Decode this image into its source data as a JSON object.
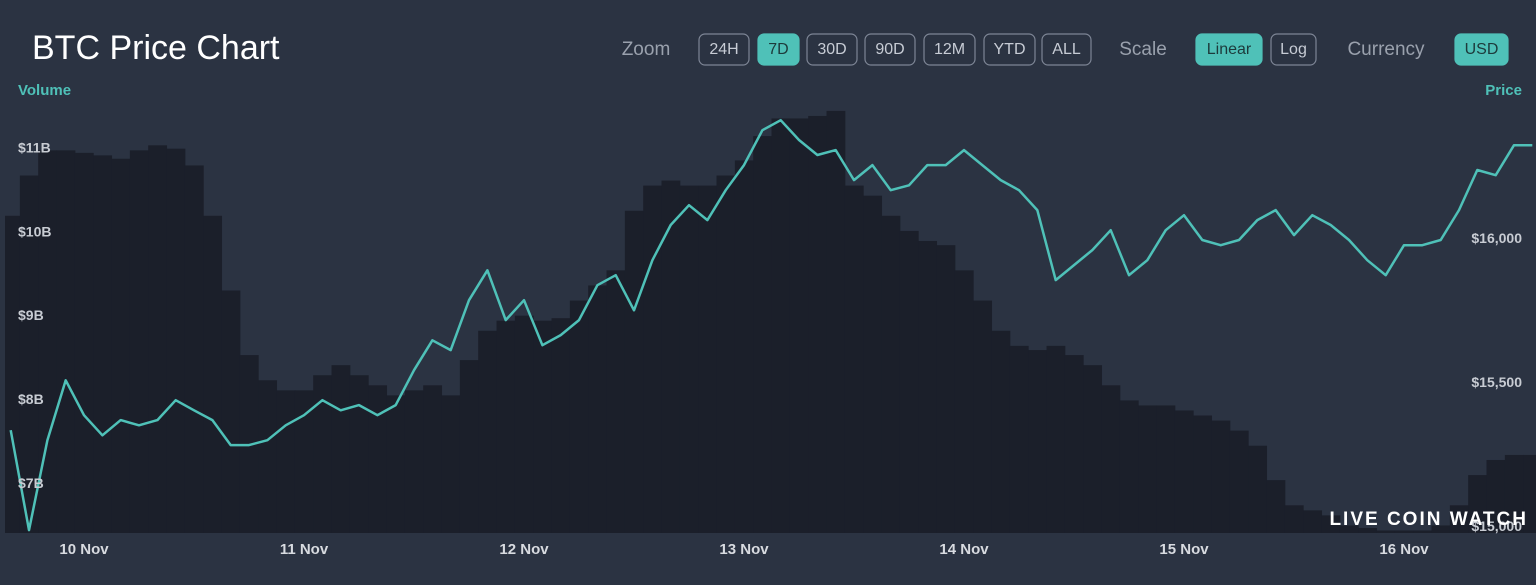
{
  "header": {
    "title": "BTC Price Chart"
  },
  "controls": {
    "zoom": {
      "label": "Zoom",
      "options": [
        "24H",
        "7D",
        "30D",
        "90D",
        "12M",
        "YTD",
        "ALL"
      ],
      "selected": "7D"
    },
    "scale": {
      "label": "Scale",
      "options": [
        "Linear",
        "Log"
      ],
      "selected": "Linear"
    },
    "currency": {
      "label": "Currency",
      "options": [
        "USD"
      ],
      "selected": "USD"
    }
  },
  "watermark": "LIVE COIN WATCH",
  "chart_data": {
    "type": "combo",
    "categories": [
      null,
      null,
      null,
      null,
      "10 Nov",
      null,
      null,
      null,
      null,
      null,
      null,
      null,
      null,
      null,
      null,
      null,
      "11 Nov",
      null,
      null,
      null,
      null,
      null,
      null,
      null,
      null,
      null,
      null,
      null,
      "12 Nov",
      null,
      null,
      null,
      null,
      null,
      null,
      null,
      null,
      null,
      null,
      null,
      "13 Nov",
      null,
      null,
      null,
      null,
      null,
      null,
      null,
      null,
      null,
      null,
      null,
      "14 Nov",
      null,
      null,
      null,
      null,
      null,
      null,
      null,
      null,
      null,
      null,
      null,
      "15 Nov",
      null,
      null,
      null,
      null,
      null,
      null,
      null,
      null,
      null,
      null,
      null,
      "16 Nov",
      null,
      null,
      null,
      null,
      null,
      null,
      null
    ],
    "series": [
      {
        "name": "Volume",
        "type": "bar",
        "color": "#1b1f2a",
        "values": [
          10.2,
          10.68,
          10.98,
          10.98,
          10.95,
          10.92,
          10.88,
          10.98,
          11.04,
          11.0,
          10.8,
          10.2,
          9.31,
          8.54,
          8.24,
          8.12,
          8.12,
          8.3,
          8.42,
          8.3,
          8.18,
          8.06,
          8.12,
          8.18,
          8.06,
          8.48,
          8.83,
          8.95,
          9.01,
          8.95,
          8.98,
          9.19,
          9.37,
          9.55,
          10.26,
          10.56,
          10.62,
          10.56,
          10.56,
          10.68,
          10.86,
          11.15,
          11.36,
          11.36,
          11.39,
          11.45,
          10.56,
          10.44,
          10.2,
          10.02,
          9.9,
          9.85,
          9.55,
          9.19,
          8.83,
          8.65,
          8.6,
          8.65,
          8.54,
          8.42,
          8.18,
          8.0,
          7.94,
          7.94,
          7.88,
          7.82,
          7.76,
          7.64,
          7.46,
          7.05,
          6.75,
          6.69,
          6.63,
          6.51,
          6.48,
          6.45,
          6.45,
          6.45,
          6.51,
          6.75,
          7.11,
          7.29,
          7.35,
          7.35
        ]
      },
      {
        "name": "Price",
        "type": "line",
        "axis": "y2",
        "color": "#4fc1b8",
        "values": [
          15337,
          14990,
          15302,
          15510,
          15389,
          15319,
          15372,
          15354,
          15372,
          15441,
          15406,
          15372,
          15285,
          15285,
          15302,
          15354,
          15389,
          15441,
          15406,
          15424,
          15389,
          15424,
          15545,
          15649,
          15615,
          15788,
          15892,
          15719,
          15788,
          15632,
          15667,
          15719,
          15840,
          15875,
          15753,
          15927,
          16049,
          16118,
          16066,
          16170,
          16257,
          16378,
          16413,
          16344,
          16292,
          16309,
          16205,
          16257,
          16170,
          16187,
          16257,
          16257,
          16309,
          16257,
          16205,
          16170,
          16101,
          15858,
          15910,
          15962,
          16031,
          15875,
          15927,
          16031,
          16083,
          15997,
          15979,
          15997,
          16066,
          16101,
          16014,
          16083,
          16049,
          15997,
          15927,
          15875,
          15979,
          15979,
          15997,
          16101,
          16240,
          16222,
          16326,
          16326
        ]
      }
    ],
    "ylim": [
      6.42,
      11.58
    ],
    "yticks": [
      {
        "value": 7,
        "label": "$7B"
      },
      {
        "value": 8,
        "label": "$8B"
      },
      {
        "value": 9,
        "label": "$9B"
      },
      {
        "value": 10,
        "label": "$10B"
      },
      {
        "value": 11,
        "label": "$11B"
      }
    ],
    "y2lim": [
      14980,
      16483
    ],
    "y2ticks": [
      {
        "value": 15000,
        "label": "$15,000"
      },
      {
        "value": 15500,
        "label": "$15,500"
      },
      {
        "value": 16000,
        "label": "$16,000"
      }
    ],
    "grid": false
  }
}
